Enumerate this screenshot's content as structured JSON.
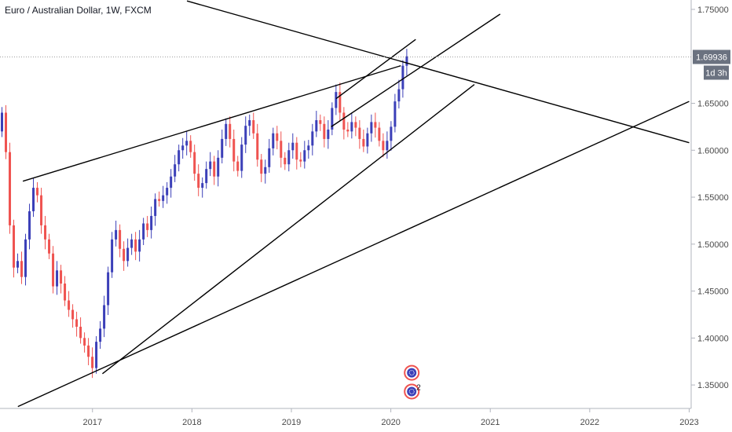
{
  "chart_data": {
    "type": "candlestick",
    "title": "Euro / Australian Dollar, 1W, FXCM",
    "last_price": "1.69936",
    "countdown": "1d 3h",
    "y_ticks": [
      "1.75000",
      "1.65000",
      "1.60000",
      "1.55000",
      "1.50000",
      "1.45000",
      "1.40000",
      "1.35000"
    ],
    "x_ticks": [
      "2017",
      "2018",
      "2019",
      "2020",
      "2021",
      "2022",
      "2023"
    ],
    "ylim": [
      1.325,
      1.76
    ],
    "xlim": [
      2016.07,
      2023.02
    ],
    "marker_label": "2",
    "colors": {
      "up": "#3b3fb8",
      "down": "#ef5350",
      "line": "#000000",
      "axis_text": "#4a4a4a",
      "price_badge": "#6b7280",
      "price_line": "#9e9e9e"
    },
    "weekly_closes": [
      1.64,
      1.598,
      1.52,
      1.475,
      1.482,
      1.465,
      1.505,
      1.535,
      1.56,
      1.552,
      1.52,
      1.505,
      1.49,
      1.455,
      1.472,
      1.458,
      1.44,
      1.43,
      1.42,
      1.412,
      1.4,
      1.392,
      1.38,
      1.368,
      1.396,
      1.41,
      1.435,
      1.47,
      1.505,
      1.515,
      1.495,
      1.482,
      1.496,
      1.505,
      1.492,
      1.505,
      1.522,
      1.515,
      1.53,
      1.548,
      1.546,
      1.552,
      1.56,
      1.572,
      1.585,
      1.6,
      1.605,
      1.61,
      1.598,
      1.575,
      1.56,
      1.565,
      1.58,
      1.588,
      1.572,
      1.592,
      1.612,
      1.628,
      1.612,
      1.588,
      1.578,
      1.606,
      1.626,
      1.632,
      1.618,
      1.59,
      1.575,
      1.582,
      1.602,
      1.618,
      1.61,
      1.592,
      1.585,
      1.6,
      1.608,
      1.59,
      1.588,
      1.6,
      1.605,
      1.62,
      1.632,
      1.628,
      1.612,
      1.622,
      1.645,
      1.662,
      1.64,
      1.622,
      1.62,
      1.63,
      1.624,
      1.612,
      1.604,
      1.618,
      1.63,
      1.624,
      1.61,
      1.6,
      1.61,
      1.625,
      1.652,
      1.665,
      1.69,
      1.7
    ]
  },
  "lines": [
    {
      "name": "upper-channel-line",
      "p1": {
        "x": 2016.3,
        "y": 1.567
      },
      "p2": {
        "x": 2020.1,
        "y": 1.69
      }
    },
    {
      "name": "steep-support-line",
      "p1": {
        "x": 2017.1,
        "y": 1.362
      },
      "p2": {
        "x": 2020.84,
        "y": 1.67
      }
    },
    {
      "name": "long-support-line",
      "p1": {
        "x": 2016.25,
        "y": 1.327
      },
      "p2": {
        "x": 2023.0,
        "y": 1.652
      }
    },
    {
      "name": "descending-resistance-line",
      "p1": {
        "x": 2017.95,
        "y": 1.759
      },
      "p2": {
        "x": 2023.0,
        "y": 1.608
      }
    },
    {
      "name": "rising-wedge-top-line",
      "p1": {
        "x": 2019.4,
        "y": 1.625
      },
      "p2": {
        "x": 2021.1,
        "y": 1.745
      }
    },
    {
      "name": "short-top-line",
      "p1": {
        "x": 2019.45,
        "y": 1.655
      },
      "p2": {
        "x": 2020.25,
        "y": 1.718
      }
    }
  ]
}
